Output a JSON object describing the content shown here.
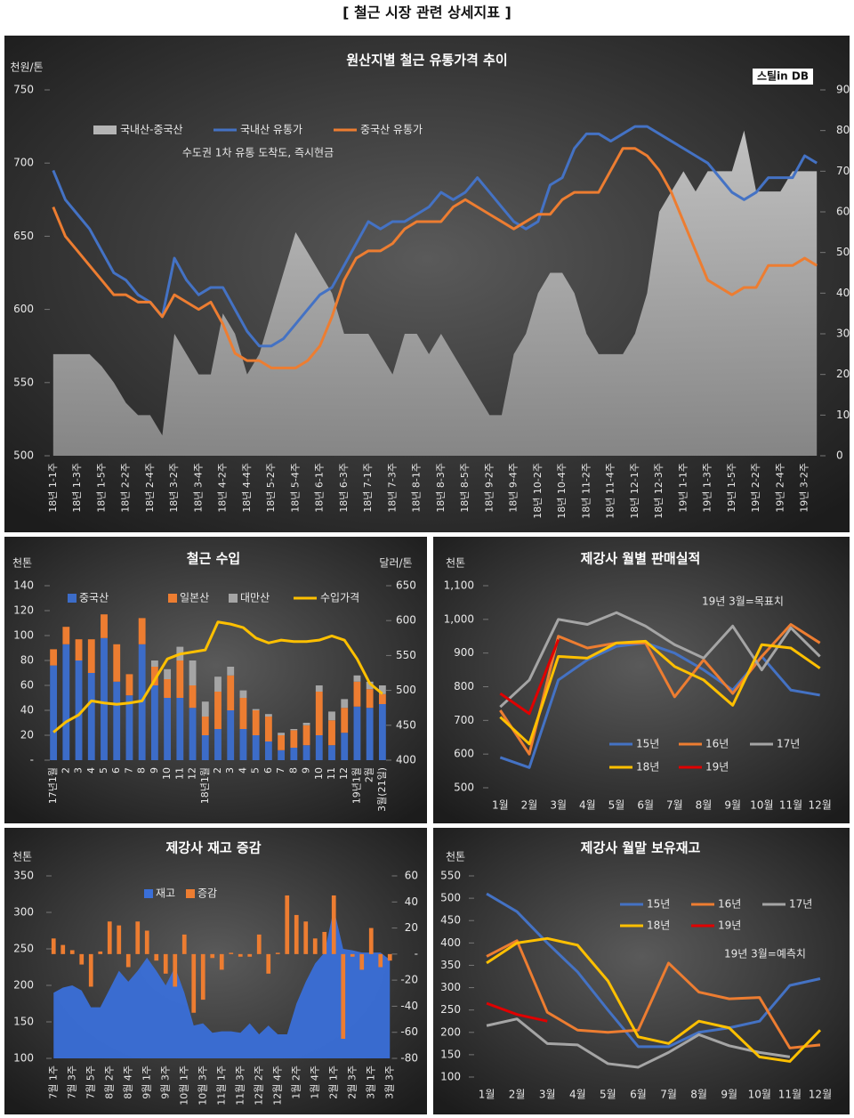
{
  "title": "[ 철근 시장 관련 상세지표 ]",
  "chart_data": [
    {
      "type": "combo",
      "title": "원산지별 철근 유통가격 추이",
      "y_label": "천원/톤",
      "annotation": "수도권 1차 유통 도착도, 즉시현금",
      "logo": "스틸in DB",
      "categories": [
        "18년 1-1주",
        null,
        "18년 1-3주",
        null,
        "18년 1-5주",
        null,
        "18년 2-2주",
        null,
        "18년 2-4주",
        null,
        "18년 3-2주",
        null,
        "18년 3-4주",
        null,
        "18년 4-2주",
        null,
        "18년 4-4주",
        null,
        "18년 5-2주",
        null,
        "18년 5-4주",
        null,
        "18년 6-1주",
        null,
        "18년 6-3주",
        null,
        "18년 7-1주",
        null,
        "18년 7-3주",
        null,
        "18년 8-1주",
        null,
        "18년 8-3주",
        null,
        "18년 8-5주",
        null,
        "18년 9-2주",
        null,
        "18년 9-4주",
        null,
        "18년 10-2주",
        null,
        "18년 10-4주",
        null,
        "18년 11-2주",
        null,
        "18년 11-4주",
        null,
        "18년 12-1주",
        null,
        "18년 12-3주",
        null,
        "19년 1-1주",
        null,
        "19년 1-3주",
        null,
        "19년 1-5주",
        null,
        "19년 2-2주",
        null,
        "19년 2-4주",
        null,
        "19년 3-2주",
        null
      ],
      "series": [
        {
          "name": "국내산-중국산",
          "type": "area",
          "axis": "y2",
          "color": "#b4b4b4",
          "values": [
            25,
            25,
            25,
            25,
            22,
            18,
            13,
            10,
            10,
            5,
            30,
            25,
            20,
            20,
            35,
            30,
            20,
            25,
            35,
            45,
            55,
            50,
            45,
            40,
            30,
            30,
            30,
            25,
            20,
            30,
            30,
            25,
            30,
            25,
            20,
            15,
            10,
            10,
            25,
            30,
            40,
            45,
            45,
            40,
            30,
            25,
            25,
            25,
            30,
            40,
            60,
            65,
            70,
            65,
            70,
            70,
            70,
            80,
            65,
            65,
            65,
            70,
            70,
            70
          ]
        },
        {
          "name": "국내산 유통가",
          "type": "line",
          "color": "#4472c4",
          "values": [
            695,
            675,
            665,
            655,
            640,
            625,
            620,
            610,
            605,
            595,
            635,
            620,
            610,
            615,
            615,
            600,
            585,
            575,
            575,
            580,
            590,
            600,
            610,
            615,
            630,
            645,
            660,
            655,
            660,
            660,
            665,
            670,
            680,
            675,
            680,
            690,
            680,
            670,
            660,
            655,
            660,
            685,
            690,
            710,
            720,
            720,
            715,
            720,
            725,
            725,
            720,
            715,
            710,
            705,
            700,
            690,
            680,
            675,
            680,
            690,
            690,
            690,
            705,
            700
          ]
        },
        {
          "name": "중국산 유통가",
          "type": "line",
          "color": "#ed7d31",
          "values": [
            670,
            650,
            640,
            630,
            620,
            610,
            610,
            605,
            605,
            595,
            610,
            605,
            600,
            605,
            590,
            570,
            565,
            565,
            560,
            560,
            560,
            565,
            575,
            595,
            620,
            635,
            640,
            640,
            645,
            655,
            660,
            660,
            660,
            670,
            675,
            670,
            665,
            660,
            655,
            660,
            665,
            665,
            675,
            680,
            680,
            680,
            695,
            710,
            710,
            705,
            695,
            680,
            660,
            640,
            620,
            615,
            610,
            615,
            615,
            630,
            630,
            630,
            635,
            630
          ]
        }
      ],
      "ylim": [
        500,
        750
      ],
      "yticks": [
        500,
        550,
        600,
        650,
        700,
        750
      ],
      "y2lim": [
        0,
        90
      ],
      "y2ticks": [
        0,
        10,
        20,
        30,
        40,
        50,
        60,
        70,
        80,
        90
      ]
    },
    {
      "type": "combo",
      "title": "철근 수입",
      "y_label": "천톤",
      "y2_label": "달러/톤",
      "stacked": true,
      "categories": [
        "17년1월",
        "2",
        "3",
        "4",
        "5",
        "6",
        "7",
        "8",
        "9",
        "10",
        "11",
        "12",
        "18년1월",
        "2",
        "3",
        "4",
        "5",
        "6",
        "7",
        "8",
        "9",
        "10",
        "11",
        "12",
        "19년1월",
        "2월",
        "3월(21일)"
      ],
      "series": [
        {
          "name": "중국산",
          "type": "bar",
          "color": "#3c6cc8",
          "values": [
            76,
            93,
            80,
            70,
            98,
            63,
            52,
            93,
            60,
            50,
            50,
            42,
            20,
            25,
            40,
            25,
            20,
            15,
            8,
            10,
            12,
            20,
            12,
            22,
            43,
            42,
            45
          ]
        },
        {
          "name": "일본산",
          "type": "bar",
          "color": "#ed7d31",
          "values": [
            13,
            14,
            17,
            27,
            19,
            30,
            17,
            21,
            15,
            15,
            30,
            18,
            15,
            30,
            28,
            25,
            20,
            20,
            12,
            14,
            16,
            35,
            20,
            20,
            20,
            15,
            8
          ]
        },
        {
          "name": "대만산",
          "type": "bar",
          "color": "#a5a5a5",
          "values": [
            0,
            0,
            0,
            0,
            0,
            0,
            0,
            0,
            5,
            8,
            11,
            20,
            12,
            12,
            7,
            6,
            1,
            2,
            2,
            1,
            2,
            5,
            7,
            7,
            5,
            6,
            7
          ]
        },
        {
          "name": "수입가격",
          "type": "line",
          "axis": "y2",
          "color": "#ffc000",
          "values": [
            440,
            455,
            465,
            485,
            482,
            480,
            482,
            485,
            515,
            545,
            552,
            555,
            558,
            598,
            595,
            590,
            575,
            568,
            572,
            570,
            570,
            572,
            578,
            572,
            545,
            510,
            495
          ]
        }
      ],
      "ylim": [
        0,
        140
      ],
      "yticks": [
        {
          "value": 0,
          "label": "-"
        },
        20,
        40,
        60,
        80,
        100,
        120,
        140
      ],
      "y2lim": [
        400,
        650
      ],
      "y2ticks": [
        400,
        450,
        500,
        550,
        600,
        650
      ]
    },
    {
      "type": "line",
      "title": "제강사 월별 판매실적",
      "y_label": "천톤",
      "annotation": "19년 3월=목표치",
      "categories": [
        "1월",
        "2월",
        "3월",
        "4월",
        "5월",
        "6월",
        "7월",
        "8월",
        "9월",
        "10월",
        "11월",
        "12월"
      ],
      "series": [
        {
          "name": "15년",
          "color": "#4472c4",
          "values": [
            590,
            560,
            820,
            880,
            920,
            930,
            900,
            850,
            790,
            890,
            790,
            775
          ]
        },
        {
          "name": "16년",
          "color": "#ed7d31",
          "values": [
            730,
            600,
            950,
            915,
            930,
            930,
            770,
            880,
            780,
            890,
            985,
            930
          ]
        },
        {
          "name": "17년",
          "color": "#a5a5a5",
          "values": [
            740,
            820,
            1000,
            985,
            1020,
            980,
            925,
            885,
            980,
            850,
            975,
            890
          ]
        },
        {
          "name": "18년",
          "color": "#ffc000",
          "values": [
            710,
            630,
            890,
            885,
            930,
            935,
            860,
            820,
            745,
            925,
            915,
            855
          ]
        },
        {
          "name": "19년",
          "color": "#e00000",
          "values": [
            780,
            720,
            940,
            null,
            null,
            null,
            null,
            null,
            null,
            null,
            null,
            null
          ]
        }
      ],
      "ylim": [
        500,
        1100
      ],
      "yticks": [
        500,
        600,
        700,
        800,
        900,
        {
          "value": 1000,
          "label": "1,000"
        },
        {
          "value": 1100,
          "label": "1,100"
        }
      ]
    },
    {
      "type": "combo",
      "title": "제강사 재고 증감",
      "y_label": "천톤",
      "categories": [
        "7월 1주",
        null,
        "7월 3주",
        null,
        "7월 5주",
        null,
        "8월 2주",
        null,
        "8월 4주",
        null,
        "9월 1주",
        null,
        "9월 3주",
        null,
        "10월 1주",
        null,
        "10월 3주",
        null,
        "11월 1주",
        null,
        "11월 3주",
        null,
        "12월 2주",
        null,
        "12월 4주",
        null,
        "1월 2주",
        null,
        "1월 4주",
        null,
        "2월 1주",
        null,
        "2월 3주",
        null,
        "3월 1주",
        null,
        "3월 3주"
      ],
      "series": [
        {
          "name": "재고",
          "type": "area",
          "color": "#3a6fd8",
          "values": [
            190,
            197,
            200,
            193,
            170,
            170,
            195,
            220,
            205,
            220,
            238,
            220,
            200,
            225,
            190,
            145,
            148,
            135,
            137,
            137,
            135,
            148,
            133,
            145,
            133,
            133,
            175,
            205,
            230,
            245,
            305,
            250,
            248,
            245,
            245,
            245,
            235
          ]
        },
        {
          "name": "증감",
          "type": "bar",
          "axis": "y2",
          "color": "#ed7d31",
          "values": [
            12,
            7,
            3,
            -8,
            -25,
            2,
            25,
            22,
            -10,
            25,
            18,
            -5,
            -15,
            -25,
            15,
            -45,
            -35,
            -3,
            -12,
            1,
            -2,
            -2,
            15,
            -15,
            1,
            45,
            30,
            25,
            12,
            17,
            45,
            -65,
            -2,
            -12,
            20,
            -10,
            -5
          ]
        }
      ],
      "ylim": [
        100,
        350
      ],
      "yticks": [
        100,
        150,
        200,
        250,
        300,
        350
      ],
      "y2lim": [
        -80,
        60
      ],
      "y2ticks": [
        -80,
        -60,
        -40,
        -20,
        {
          "value": 0,
          "label": "-"
        },
        20,
        40,
        60
      ]
    },
    {
      "type": "line",
      "title": "제강사 월말 보유재고",
      "y_label": "천톤",
      "annotation": "19년 3월=예측치",
      "categories": [
        "1월",
        "2월",
        "3월",
        "4월",
        "5월",
        "6월",
        "7월",
        "8월",
        "9월",
        "10월",
        "11월",
        "12월"
      ],
      "series": [
        {
          "name": "15년",
          "color": "#4472c4",
          "values": [
            510,
            470,
            400,
            335,
            250,
            168,
            168,
            200,
            210,
            225,
            305,
            320
          ]
        },
        {
          "name": "16년",
          "color": "#ed7d31",
          "values": [
            370,
            405,
            245,
            205,
            200,
            205,
            355,
            290,
            275,
            278,
            165,
            172
          ]
        },
        {
          "name": "17년",
          "color": "#a5a5a5",
          "values": [
            215,
            230,
            175,
            172,
            130,
            122,
            155,
            195,
            170,
            155,
            145,
            null
          ]
        },
        {
          "name": "18년",
          "color": "#ffc000",
          "values": [
            355,
            400,
            410,
            395,
            315,
            190,
            175,
            225,
            210,
            145,
            135,
            205
          ]
        },
        {
          "name": "19년",
          "color": "#e00000",
          "values": [
            265,
            240,
            225,
            null,
            null,
            null,
            null,
            null,
            null,
            null,
            null,
            null
          ]
        }
      ],
      "ylim": [
        100,
        550
      ],
      "yticks": [
        100,
        150,
        200,
        250,
        300,
        350,
        400,
        450,
        500,
        550
      ]
    }
  ]
}
